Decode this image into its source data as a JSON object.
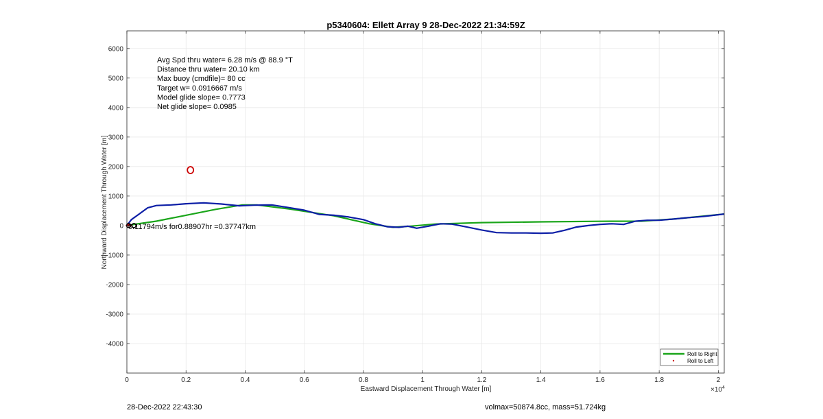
{
  "chart_data": {
    "type": "line",
    "title": "p5340604: Ellett Array 9 28-Dec-2022 21:34:59Z",
    "xlabel": "Eastward Displacement Through Water [m]",
    "ylabel": "Northward Displacement Through Water [m]",
    "x_exponent_label": "×10",
    "x_exponent_power": "4",
    "xlim": [
      0,
      20200
    ],
    "ylim": [
      -5000,
      6600
    ],
    "x_ticks": [
      0,
      2000,
      4000,
      6000,
      8000,
      10000,
      12000,
      14000,
      16000,
      18000,
      20000
    ],
    "x_tick_labels": [
      "0",
      "0.2",
      "0.4",
      "0.6",
      "0.8",
      "1",
      "1.2",
      "1.4",
      "1.6",
      "1.8",
      "2"
    ],
    "y_ticks": [
      -4000,
      -3000,
      -2000,
      -1000,
      0,
      1000,
      2000,
      3000,
      4000,
      5000,
      6000
    ],
    "y_tick_labels": [
      "-4000",
      "-3000",
      "-2000",
      "-1000",
      "0",
      "1000",
      "2000",
      "3000",
      "4000",
      "5000",
      "6000"
    ],
    "grid": true,
    "legend_position": "bottom-right",
    "info_lines": [
      "Avg Spd thru water=  6.28 m/s @  88.9 °T",
      "Distance thru water= 20.10 km",
      "Max buoy (cmdfile)= 80 cc",
      "Target w= 0.0916667 m/s",
      "Model glide slope= 0.7773",
      "Net glide slope= 0.0985"
    ],
    "annotation": "0.11794m/s for0.88907hr =0.37747km",
    "annotation_x": 0,
    "annotation_y": -10,
    "target_marker": {
      "x": 2150,
      "y": 1880
    },
    "series": [
      {
        "name": "Roll to Right",
        "color": "#1aa51a",
        "x": [
          0,
          300,
          1000,
          2000,
          3000,
          3900,
          4400,
          5500,
          7000,
          8200,
          9000,
          9600,
          10400,
          12000,
          14000,
          16000,
          17400,
          18500,
          20200
        ],
        "y": [
          0,
          50,
          150,
          350,
          550,
          700,
          700,
          560,
          330,
          60,
          -60,
          -20,
          50,
          100,
          125,
          145,
          150,
          220,
          390
        ]
      },
      {
        "name": "Roll to Left",
        "color": "#cc0000",
        "x": [
          0,
          60,
          120
        ],
        "y": [
          0,
          15,
          10
        ]
      },
      {
        "name": "",
        "color": "#0c1ea6",
        "x": [
          0,
          150,
          400,
          700,
          1000,
          1500,
          2000,
          2600,
          3200,
          3800,
          4300,
          4900,
          5400,
          6000,
          6500,
          7000,
          7500,
          8000,
          8400,
          8800,
          9200,
          9500,
          9800,
          10200,
          10600,
          11000,
          11500,
          12000,
          12500,
          13000,
          13500,
          14000,
          14400,
          14800,
          15200,
          15600,
          16000,
          16400,
          16800,
          17200,
          17600,
          18000,
          18500,
          19000,
          19500,
          20200
        ],
        "y": [
          0,
          200,
          380,
          600,
          680,
          700,
          740,
          770,
          730,
          670,
          690,
          700,
          620,
          520,
          380,
          350,
          290,
          200,
          60,
          -40,
          -60,
          -20,
          -90,
          -20,
          60,
          50,
          -50,
          -150,
          -240,
          -250,
          -250,
          -260,
          -250,
          -160,
          -50,
          0,
          40,
          60,
          40,
          150,
          180,
          180,
          220,
          270,
          310,
          390
        ]
      }
    ]
  },
  "footer": {
    "datetime": "28-Dec-2022 22:43:30",
    "volmax_mass": "volmax=50874.8cc, mass=51.724kg"
  }
}
